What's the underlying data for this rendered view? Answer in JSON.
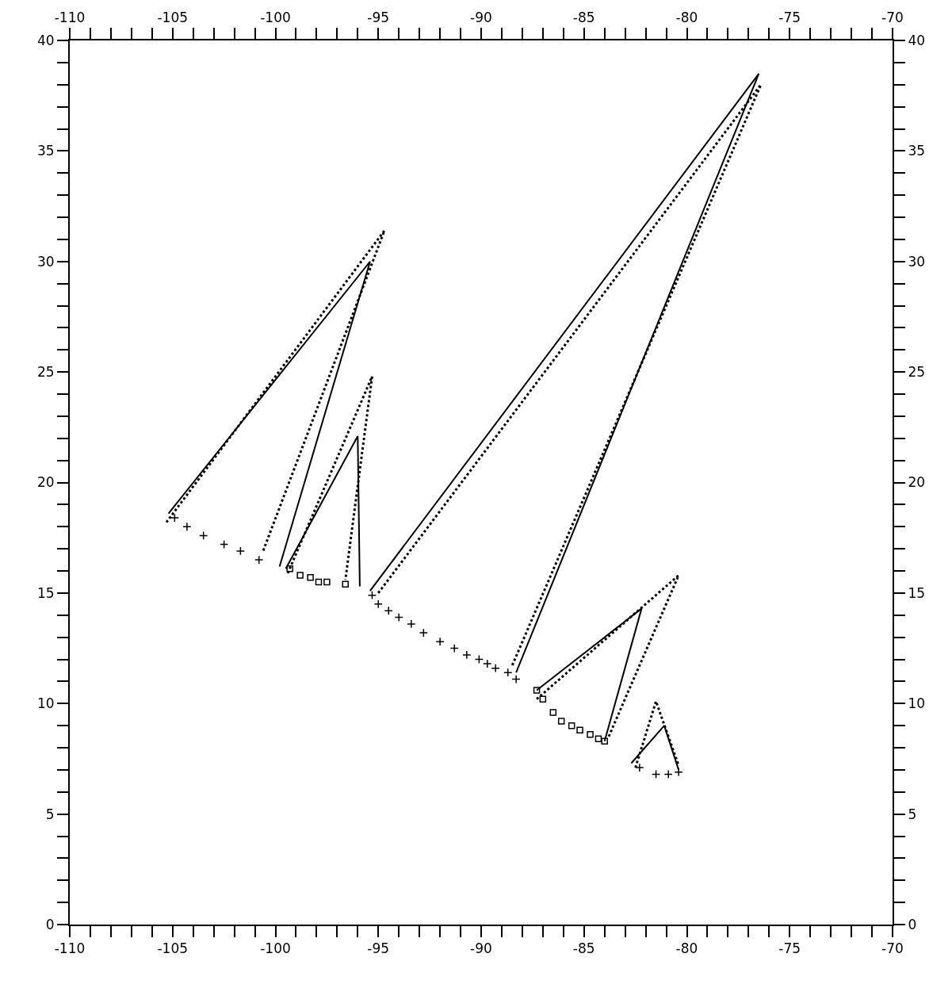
{
  "chart_data": {
    "type": "line",
    "xlim": [
      -110,
      -70
    ],
    "ylim": [
      0,
      40
    ],
    "x2lim": [
      -110,
      -70
    ],
    "y2lim": [
      0,
      40
    ],
    "xticks": [
      -110,
      {
        "value": -109,
        "label": null
      },
      {
        "value": -108,
        "label": null
      },
      {
        "value": -107,
        "label": null
      },
      {
        "value": -106,
        "label": null
      },
      -105,
      {
        "value": -104,
        "label": null
      },
      {
        "value": -103,
        "label": null
      },
      {
        "value": -102,
        "label": null
      },
      {
        "value": -101,
        "label": null
      },
      -100,
      {
        "value": -99,
        "label": null
      },
      {
        "value": -98,
        "label": null
      },
      {
        "value": -97,
        "label": null
      },
      {
        "value": -96,
        "label": null
      },
      -95,
      {
        "value": -94,
        "label": null
      },
      {
        "value": -93,
        "label": null
      },
      {
        "value": -92,
        "label": null
      },
      {
        "value": -91,
        "label": null
      },
      -90,
      {
        "value": -89,
        "label": null
      },
      {
        "value": -88,
        "label": null
      },
      {
        "value": -87,
        "label": null
      },
      {
        "value": -86,
        "label": null
      },
      -85,
      {
        "value": -84,
        "label": null
      },
      {
        "value": -83,
        "label": null
      },
      {
        "value": -82,
        "label": null
      },
      {
        "value": -81,
        "label": null
      },
      -80,
      {
        "value": -79,
        "label": null
      },
      {
        "value": -78,
        "label": null
      },
      {
        "value": -77,
        "label": null
      },
      {
        "value": -76,
        "label": null
      },
      -75,
      {
        "value": -74,
        "label": null
      },
      {
        "value": -73,
        "label": null
      },
      {
        "value": -72,
        "label": null
      },
      {
        "value": -71,
        "label": null
      },
      -70
    ],
    "x2ticks": [
      -110,
      {
        "value": -109,
        "label": null
      },
      {
        "value": -108,
        "label": null
      },
      {
        "value": -107,
        "label": null
      },
      {
        "value": -106,
        "label": null
      },
      -105,
      {
        "value": -104,
        "label": null
      },
      {
        "value": -103,
        "label": null
      },
      {
        "value": -102,
        "label": null
      },
      {
        "value": -101,
        "label": null
      },
      -100,
      {
        "value": -99,
        "label": null
      },
      {
        "value": -98,
        "label": null
      },
      {
        "value": -97,
        "label": null
      },
      {
        "value": -96,
        "label": null
      },
      -95,
      {
        "value": -94,
        "label": null
      },
      {
        "value": -93,
        "label": null
      },
      {
        "value": -92,
        "label": null
      },
      {
        "value": -91,
        "label": null
      },
      -90,
      {
        "value": -89,
        "label": null
      },
      {
        "value": -88,
        "label": null
      },
      {
        "value": -87,
        "label": null
      },
      {
        "value": -86,
        "label": null
      },
      -85,
      {
        "value": -84,
        "label": null
      },
      {
        "value": -83,
        "label": null
      },
      {
        "value": -82,
        "label": null
      },
      {
        "value": -81,
        "label": null
      },
      -80,
      {
        "value": -79,
        "label": null
      },
      {
        "value": -78,
        "label": null
      },
      {
        "value": -77,
        "label": null
      },
      {
        "value": -76,
        "label": null
      },
      -75,
      {
        "value": -74,
        "label": null
      },
      {
        "value": -73,
        "label": null
      },
      {
        "value": -72,
        "label": null
      },
      {
        "value": -71,
        "label": null
      },
      -70
    ],
    "yticks": [
      0,
      {
        "value": 1,
        "label": null
      },
      {
        "value": 2,
        "label": null
      },
      {
        "value": 3,
        "label": null
      },
      {
        "value": 4,
        "label": null
      },
      5,
      {
        "value": 6,
        "label": null
      },
      {
        "value": 7,
        "label": null
      },
      {
        "value": 8,
        "label": null
      },
      {
        "value": 9,
        "label": null
      },
      10,
      {
        "value": 11,
        "label": null
      },
      {
        "value": 12,
        "label": null
      },
      {
        "value": 13,
        "label": null
      },
      {
        "value": 14,
        "label": null
      },
      15,
      {
        "value": 16,
        "label": null
      },
      {
        "value": 17,
        "label": null
      },
      {
        "value": 18,
        "label": null
      },
      {
        "value": 19,
        "label": null
      },
      20,
      {
        "value": 21,
        "label": null
      },
      {
        "value": 22,
        "label": null
      },
      {
        "value": 23,
        "label": null
      },
      {
        "value": 24,
        "label": null
      },
      25,
      {
        "value": 26,
        "label": null
      },
      {
        "value": 27,
        "label": null
      },
      {
        "value": 28,
        "label": null
      },
      {
        "value": 29,
        "label": null
      },
      30,
      {
        "value": 31,
        "label": null
      },
      {
        "value": 32,
        "label": null
      },
      {
        "value": 33,
        "label": null
      },
      {
        "value": 34,
        "label": null
      },
      35,
      {
        "value": 36,
        "label": null
      },
      {
        "value": 37,
        "label": null
      },
      {
        "value": 38,
        "label": null
      },
      {
        "value": 39,
        "label": null
      },
      40
    ],
    "y2ticks": [
      0,
      {
        "value": 1,
        "label": null
      },
      {
        "value": 2,
        "label": null
      },
      {
        "value": 3,
        "label": null
      },
      {
        "value": 4,
        "label": null
      },
      5,
      {
        "value": 6,
        "label": null
      },
      {
        "value": 7,
        "label": null
      },
      {
        "value": 8,
        "label": null
      },
      {
        "value": 9,
        "label": null
      },
      10,
      {
        "value": 11,
        "label": null
      },
      {
        "value": 12,
        "label": null
      },
      {
        "value": 13,
        "label": null
      },
      {
        "value": 14,
        "label": null
      },
      15,
      {
        "value": 16,
        "label": null
      },
      {
        "value": 17,
        "label": null
      },
      {
        "value": 18,
        "label": null
      },
      {
        "value": 19,
        "label": null
      },
      20,
      {
        "value": 21,
        "label": null
      },
      {
        "value": 22,
        "label": null
      },
      {
        "value": 23,
        "label": null
      },
      {
        "value": 24,
        "label": null
      },
      25,
      {
        "value": 26,
        "label": null
      },
      {
        "value": 27,
        "label": null
      },
      {
        "value": 28,
        "label": null
      },
      {
        "value": 29,
        "label": null
      },
      30,
      {
        "value": 31,
        "label": null
      },
      {
        "value": 32,
        "label": null
      },
      {
        "value": 33,
        "label": null
      },
      {
        "value": 34,
        "label": null
      },
      35,
      {
        "value": 36,
        "label": null
      },
      {
        "value": 37,
        "label": null
      },
      {
        "value": 38,
        "label": null
      },
      {
        "value": 39,
        "label": null
      },
      40
    ],
    "grid": false,
    "series": [
      {
        "line_style": "solid",
        "color": "#000000",
        "x": [
          -105.2,
          -95.4,
          -99.8,
          null,
          -99.5,
          -96.0,
          -95.9,
          null,
          -95.4,
          -76.5,
          -88.3,
          null,
          -87.3,
          -82.2,
          -84.0,
          null,
          -82.7,
          -81.1,
          -80.4
        ],
        "values": [
          18.6,
          30.0,
          16.2,
          null,
          16.1,
          22.1,
          15.3,
          null,
          15.1,
          38.5,
          11.4,
          null,
          10.6,
          14.3,
          8.3,
          null,
          7.3,
          9.0,
          7.0
        ]
      },
      {
        "line_style": "dotted",
        "color": "#000000",
        "x": [
          -105.3,
          -94.7,
          -100.6,
          null,
          -99.4,
          -95.3,
          -96.6,
          null,
          -95.0,
          -76.4,
          -88.5,
          null,
          -87.3,
          -80.4,
          -83.8,
          null,
          -82.5,
          -81.5,
          -80.4
        ],
        "values": [
          18.2,
          31.4,
          16.9,
          null,
          15.9,
          24.8,
          15.6,
          null,
          15.0,
          38.0,
          11.7,
          null,
          10.2,
          15.8,
          8.5,
          null,
          7.1,
          10.1,
          7.2
        ]
      },
      {
        "type": "scatter",
        "marker": "cross",
        "color": "#000000",
        "x": [
          -104.9,
          -104.3,
          -103.5,
          -102.5,
          -101.7,
          -100.8,
          -95.3,
          -95.0,
          -94.5,
          -94.0,
          -93.4,
          -92.8,
          -92.0,
          -91.3,
          -90.7,
          -90.1,
          -89.7,
          -89.3,
          -88.7,
          -88.3,
          -82.3,
          -81.5,
          -80.9,
          -80.4
        ],
        "values": [
          18.4,
          18.0,
          17.6,
          17.2,
          16.9,
          16.5,
          14.9,
          14.5,
          14.2,
          13.9,
          13.6,
          13.2,
          12.8,
          12.5,
          12.2,
          12.0,
          11.8,
          11.6,
          11.4,
          11.1,
          7.1,
          6.8,
          6.8,
          6.9
        ]
      },
      {
        "type": "scatter",
        "marker": "square",
        "color": "#000000",
        "x": [
          -99.3,
          -98.8,
          -98.3,
          -97.9,
          -97.5,
          -96.6,
          -87.3,
          -87.0,
          -86.5,
          -86.1,
          -85.6,
          -85.2,
          -84.7,
          -84.3,
          -84.0
        ],
        "values": [
          16.1,
          15.8,
          15.7,
          15.5,
          15.5,
          15.4,
          10.6,
          10.2,
          9.6,
          9.2,
          9.0,
          8.8,
          8.6,
          8.4,
          8.3
        ]
      }
    ]
  }
}
